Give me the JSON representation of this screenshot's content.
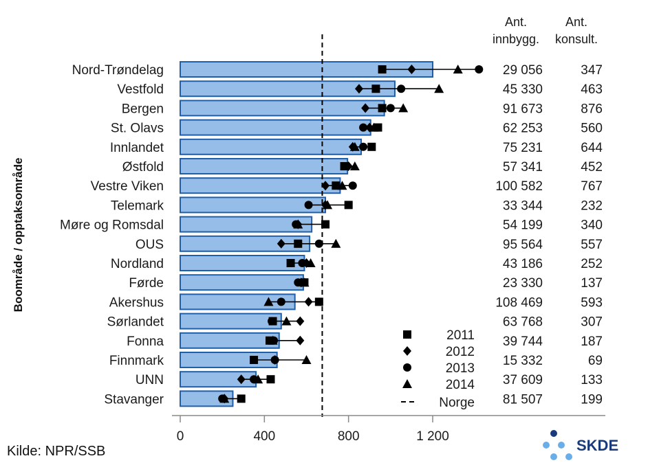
{
  "chart_data": {
    "type": "bar",
    "ylabel": "Boområde / opptaksområde",
    "xlim": [
      0,
      1400
    ],
    "xticks": [
      0,
      400,
      800,
      1200
    ],
    "xtick_labels": [
      "0",
      "400",
      "800",
      "1 200"
    ],
    "reference_line": {
      "name": "Norge",
      "value": 675
    },
    "categories": [
      "Nord-Trøndelag",
      "Vestfold",
      "Bergen",
      "St. Olavs",
      "Innlandet",
      "Østfold",
      "Vestre Viken",
      "Telemark",
      "Møre og Romsdal",
      "OUS",
      "Nordland",
      "Førde",
      "Akershus",
      "Sørlandet",
      "Fonna",
      "Finnmark",
      "UNN",
      "Stavanger"
    ],
    "values": [
      1200,
      1020,
      970,
      905,
      860,
      795,
      760,
      690,
      625,
      615,
      590,
      585,
      545,
      480,
      470,
      460,
      360,
      250
    ],
    "series": [
      {
        "name": "2011",
        "marker": "square",
        "values": [
          960,
          930,
          960,
          940,
          910,
          780,
          740,
          800,
          690,
          560,
          525,
          590,
          660,
          440,
          425,
          350,
          430,
          290
        ]
      },
      {
        "name": "2012",
        "marker": "diamond",
        "values": [
          1100,
          850,
          880,
          900,
          820,
          800,
          690,
          690,
          560,
          480,
          600,
          575,
          610,
          570,
          570,
          450,
          290,
          210
        ]
      },
      {
        "name": "2013",
        "marker": "circle",
        "values": [
          1420,
          1050,
          1000,
          870,
          870,
          780,
          820,
          610,
          550,
          660,
          580,
          560,
          480,
          435,
          445,
          450,
          350,
          200
        ]
      },
      {
        "name": "2014",
        "marker": "triangle",
        "values": [
          1320,
          1230,
          1060,
          920,
          830,
          830,
          770,
          700,
          560,
          740,
          620,
          590,
          420,
          505,
          440,
          600,
          370,
          210
        ]
      }
    ],
    "columns": {
      "population_header": [
        "Ant.",
        "innbygg."
      ],
      "consultations_header": [
        "Ant.",
        "konsult."
      ],
      "population": [
        "29 056",
        "45 330",
        "91 673",
        "62 253",
        "75 231",
        "57 341",
        "100 582",
        "33 344",
        "54 199",
        "95 564",
        "43 186",
        "23 330",
        "108 469",
        "63 768",
        "39 744",
        "15 332",
        "37 609",
        "81 507"
      ],
      "consultations": [
        "347",
        "463",
        "876",
        "560",
        "644",
        "452",
        "767",
        "232",
        "340",
        "557",
        "252",
        "137",
        "593",
        "307",
        "187",
        "69",
        "133",
        "199"
      ]
    },
    "legend": {
      "position": "bottom-right-inside",
      "entries": [
        "2011",
        "2012",
        "2013",
        "2014",
        "Norge"
      ]
    },
    "colors": {
      "bar_fill": "#95BDE8",
      "bar_stroke": "#1F5FA8",
      "marker": "#000000"
    }
  },
  "footer": {
    "source": "Kilde: NPR/SSB",
    "logo_text": "SKDE"
  }
}
